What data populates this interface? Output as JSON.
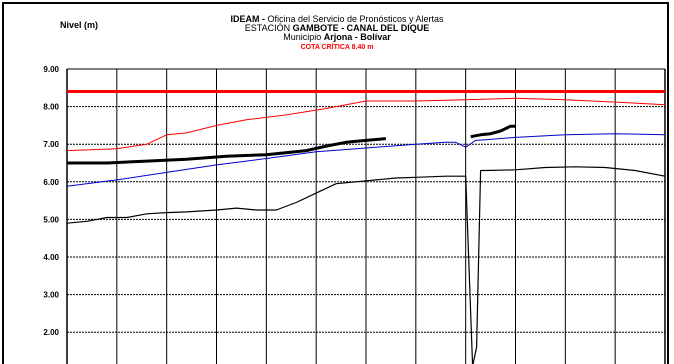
{
  "header": {
    "line1_org": "IDEAM -",
    "line1_rest": "Oficina del Servicio de Pronósticos y Alertas",
    "line2_prefix": "ESTACIÓN",
    "line2_station": "GAMBOTE - CANAL DEL DIQUE",
    "line3_prefix": "Municipio",
    "line3_place": "Arjona - Bolívar",
    "line4_critical": "COTA CRÍTICA 8.40 m"
  },
  "chart_data": {
    "type": "line",
    "title": "IDEAM - Oficina del Servicio de Pronósticos y Alertas",
    "ylabel": "Nivel (m)",
    "xlabel": "",
    "ylim": [
      1.5,
      9.0
    ],
    "yticks": [
      "9.00",
      "8.00",
      "7.00",
      "6.00",
      "5.00",
      "4.00",
      "3.00",
      "2.00"
    ],
    "grid": true,
    "critical_level": 8.4,
    "colors": {
      "critical": "#ff0000",
      "upper": "#ff0000",
      "current": "#000000",
      "middle": "#0000cc",
      "lower": "#000000"
    },
    "x_range": [
      0,
      60
    ],
    "series": [
      {
        "key": "upper",
        "x": [
          0,
          5,
          8,
          10,
          12,
          15,
          18,
          22,
          26,
          30,
          35,
          40,
          45,
          50,
          55,
          60
        ],
        "y": [
          6.83,
          6.88,
          7.0,
          7.25,
          7.3,
          7.5,
          7.65,
          7.78,
          7.95,
          8.15,
          8.15,
          8.18,
          8.22,
          8.18,
          8.12,
          8.05
        ]
      },
      {
        "key": "current",
        "x": [
          0,
          4,
          8,
          12,
          16,
          20,
          24,
          26,
          28,
          30,
          32
        ],
        "y": [
          6.5,
          6.5,
          6.55,
          6.6,
          6.68,
          6.72,
          6.83,
          6.95,
          7.05,
          7.1,
          7.15
        ]
      },
      {
        "key": "current2",
        "x": [
          40.5,
          41.5,
          42.5,
          43.5,
          44.5,
          45
        ],
        "y": [
          7.2,
          7.25,
          7.28,
          7.35,
          7.48,
          7.48
        ]
      },
      {
        "key": "middle",
        "x": [
          0,
          5,
          10,
          15,
          20,
          25,
          30,
          35,
          38,
          39,
          40,
          41,
          42,
          45,
          50,
          55,
          60
        ],
        "y": [
          5.88,
          6.05,
          6.25,
          6.45,
          6.62,
          6.8,
          6.9,
          7.0,
          7.05,
          7.05,
          6.92,
          7.1,
          7.12,
          7.18,
          7.25,
          7.28,
          7.25
        ]
      },
      {
        "key": "lower",
        "x": [
          0,
          2,
          4,
          6,
          8,
          10,
          12,
          15,
          17,
          19,
          21,
          23,
          25,
          27,
          29,
          31,
          33,
          35,
          38,
          40,
          40.7,
          41.1,
          41.5,
          42,
          45,
          48,
          51,
          54,
          57,
          60
        ],
        "y": [
          4.9,
          4.95,
          5.05,
          5.05,
          5.15,
          5.18,
          5.2,
          5.25,
          5.3,
          5.25,
          5.25,
          5.45,
          5.7,
          5.95,
          6.0,
          6.05,
          6.1,
          6.12,
          6.15,
          6.15,
          -5,
          1.6,
          6.3,
          6.3,
          6.32,
          6.38,
          6.4,
          6.38,
          6.3,
          6.15
        ]
      }
    ]
  }
}
